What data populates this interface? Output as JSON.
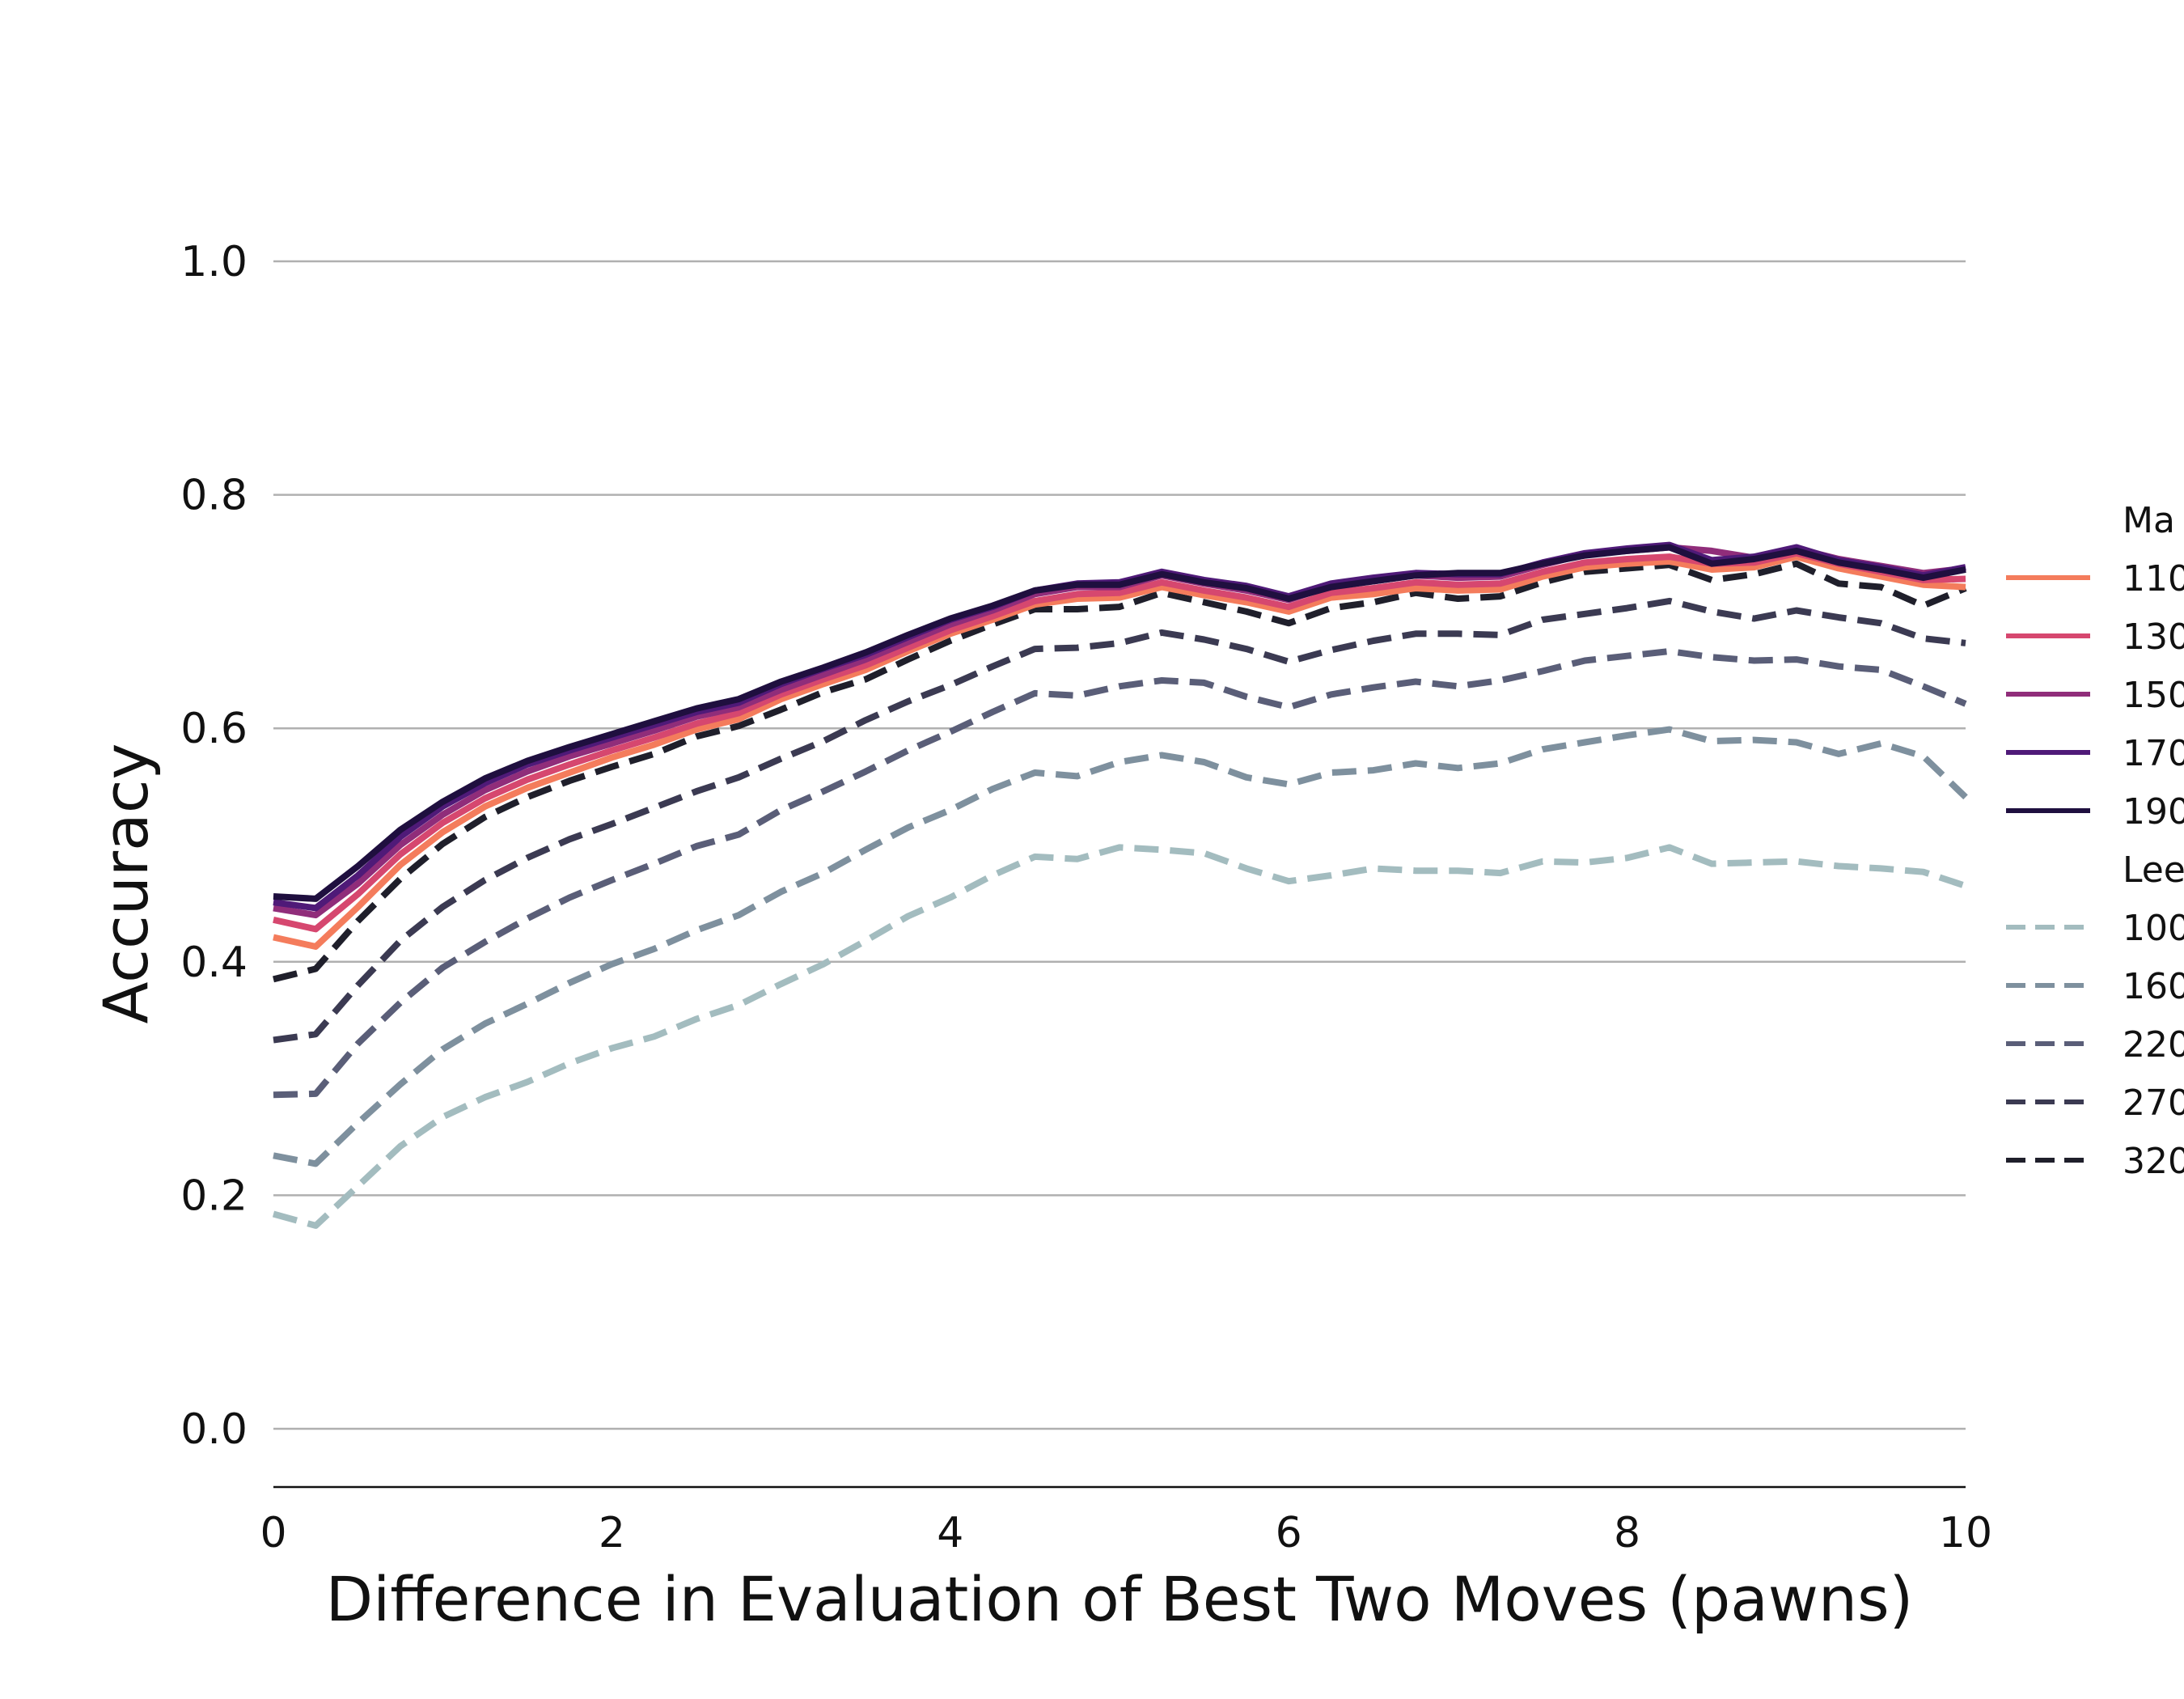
{
  "chart_data": {
    "type": "line",
    "title": "",
    "xlabel": "Difference in Evaluation of Best Two Moves (pawns)",
    "ylabel": "Accuracy",
    "xlim": [
      0,
      10
    ],
    "ylim": [
      -0.05,
      1.1
    ],
    "xticks": [
      "0",
      "2",
      "4",
      "6",
      "8",
      "10"
    ],
    "yticks": [
      "0.0",
      "0.2",
      "0.4",
      "0.6",
      "0.8",
      "1.0"
    ],
    "grid": "horizontal",
    "legend_position": "right (clipped)",
    "legend_groups": [
      {
        "title": "Ma",
        "entries": [
          "110",
          "130",
          "150",
          "170",
          "190"
        ]
      },
      {
        "title": "Lee",
        "entries": [
          "100",
          "160",
          "220",
          "270",
          "320"
        ]
      }
    ],
    "x": [
      0,
      0.25,
      0.5,
      0.75,
      1.0,
      1.25,
      1.5,
      1.75,
      2.0,
      2.25,
      2.5,
      2.75,
      3.0,
      3.25,
      3.5,
      3.75,
      4.0,
      4.25,
      4.5,
      4.75,
      5.0,
      5.25,
      5.5,
      5.75,
      6.0,
      6.25,
      6.5,
      6.75,
      7.0,
      7.25,
      7.5,
      7.75,
      8.0,
      8.25,
      8.5,
      8.75,
      9.0,
      9.25,
      9.5,
      9.75,
      10.0
    ],
    "series": [
      {
        "group": "Ma",
        "color": "#f47c5c",
        "dash": "solid",
        "values": [
          0.421,
          0.413,
          0.447,
          0.483,
          0.511,
          0.533,
          0.549,
          0.562,
          0.575,
          0.586,
          0.599,
          0.608,
          0.625,
          0.638,
          0.65,
          0.666,
          0.681,
          0.693,
          0.706,
          0.711,
          0.712,
          0.721,
          0.714,
          0.708,
          0.7,
          0.712,
          0.715,
          0.72,
          0.718,
          0.719,
          0.73,
          0.738,
          0.741,
          0.743,
          0.736,
          0.738,
          0.747,
          0.737,
          0.73,
          0.723,
          0.721
        ]
      },
      {
        "group": "Ma",
        "color": "#d6476f",
        "dash": "solid",
        "values": [
          0.436,
          0.428,
          0.458,
          0.492,
          0.519,
          0.54,
          0.556,
          0.569,
          0.581,
          0.592,
          0.604,
          0.613,
          0.629,
          0.642,
          0.654,
          0.669,
          0.684,
          0.696,
          0.709,
          0.715,
          0.716,
          0.725,
          0.718,
          0.712,
          0.704,
          0.716,
          0.72,
          0.725,
          0.723,
          0.724,
          0.734,
          0.742,
          0.745,
          0.747,
          0.741,
          0.742,
          0.75,
          0.741,
          0.734,
          0.727,
          0.728
        ]
      },
      {
        "group": "Ma",
        "color": "#902d7a",
        "dash": "solid",
        "values": [
          0.446,
          0.44,
          0.467,
          0.5,
          0.526,
          0.547,
          0.563,
          0.576,
          0.587,
          0.598,
          0.61,
          0.618,
          0.633,
          0.646,
          0.659,
          0.674,
          0.689,
          0.701,
          0.715,
          0.721,
          0.721,
          0.731,
          0.724,
          0.718,
          0.71,
          0.722,
          0.726,
          0.731,
          0.729,
          0.73,
          0.74,
          0.749,
          0.752,
          0.755,
          0.752,
          0.746,
          0.754,
          0.745,
          0.739,
          0.733,
          0.737
        ]
      },
      {
        "group": "Ma",
        "color": "#4f1a78",
        "dash": "solid",
        "values": [
          0.451,
          0.446,
          0.474,
          0.507,
          0.533,
          0.553,
          0.569,
          0.581,
          0.592,
          0.603,
          0.614,
          0.622,
          0.638,
          0.651,
          0.663,
          0.678,
          0.693,
          0.704,
          0.718,
          0.724,
          0.725,
          0.734,
          0.727,
          0.722,
          0.713,
          0.724,
          0.729,
          0.733,
          0.732,
          0.732,
          0.742,
          0.75,
          0.754,
          0.757,
          0.744,
          0.747,
          0.755,
          0.744,
          0.738,
          0.731,
          0.738
        ]
      },
      {
        "group": "Ma",
        "color": "#1f0f3f",
        "dash": "solid",
        "values": [
          0.456,
          0.454,
          0.482,
          0.513,
          0.537,
          0.557,
          0.572,
          0.584,
          0.595,
          0.606,
          0.617,
          0.625,
          0.64,
          0.652,
          0.665,
          0.68,
          0.694,
          0.705,
          0.718,
          0.723,
          0.723,
          0.732,
          0.725,
          0.72,
          0.711,
          0.721,
          0.726,
          0.731,
          0.733,
          0.733,
          0.741,
          0.748,
          0.752,
          0.755,
          0.741,
          0.745,
          0.752,
          0.742,
          0.736,
          0.729,
          0.736
        ]
      },
      {
        "group": "Lee",
        "color": "#a3bcbf",
        "dash": "dashed",
        "values": [
          0.184,
          0.174,
          0.208,
          0.242,
          0.267,
          0.284,
          0.297,
          0.313,
          0.326,
          0.336,
          0.351,
          0.363,
          0.381,
          0.398,
          0.418,
          0.439,
          0.455,
          0.474,
          0.49,
          0.488,
          0.498,
          0.496,
          0.493,
          0.48,
          0.469,
          0.474,
          0.48,
          0.478,
          0.478,
          0.476,
          0.486,
          0.485,
          0.489,
          0.498,
          0.484,
          0.485,
          0.486,
          0.482,
          0.48,
          0.477,
          0.465
        ]
      },
      {
        "group": "Lee",
        "color": "#7e909e",
        "dash": "dashed",
        "values": [
          0.234,
          0.227,
          0.262,
          0.295,
          0.325,
          0.347,
          0.364,
          0.382,
          0.398,
          0.411,
          0.427,
          0.44,
          0.46,
          0.476,
          0.496,
          0.515,
          0.53,
          0.548,
          0.562,
          0.559,
          0.571,
          0.577,
          0.571,
          0.558,
          0.552,
          0.562,
          0.564,
          0.57,
          0.566,
          0.57,
          0.582,
          0.588,
          0.594,
          0.599,
          0.589,
          0.59,
          0.588,
          0.578,
          0.587,
          0.576,
          0.541
        ]
      },
      {
        "group": "Lee",
        "color": "#5a5e78",
        "dash": "dashed",
        "values": [
          0.286,
          0.287,
          0.33,
          0.365,
          0.395,
          0.417,
          0.437,
          0.455,
          0.47,
          0.484,
          0.499,
          0.509,
          0.53,
          0.546,
          0.563,
          0.581,
          0.597,
          0.614,
          0.63,
          0.628,
          0.636,
          0.641,
          0.639,
          0.627,
          0.618,
          0.629,
          0.635,
          0.64,
          0.636,
          0.641,
          0.649,
          0.658,
          0.662,
          0.666,
          0.661,
          0.658,
          0.659,
          0.653,
          0.65,
          0.636,
          0.621
        ]
      },
      {
        "group": "Lee",
        "color": "#3b3a52",
        "dash": "dashed",
        "values": [
          0.333,
          0.338,
          0.38,
          0.418,
          0.447,
          0.47,
          0.489,
          0.505,
          0.518,
          0.532,
          0.546,
          0.558,
          0.574,
          0.589,
          0.607,
          0.623,
          0.637,
          0.653,
          0.668,
          0.669,
          0.673,
          0.682,
          0.676,
          0.668,
          0.657,
          0.667,
          0.675,
          0.681,
          0.681,
          0.68,
          0.693,
          0.698,
          0.703,
          0.709,
          0.7,
          0.694,
          0.701,
          0.695,
          0.69,
          0.677,
          0.673
        ]
      },
      {
        "group": "Lee",
        "color": "#1f1f2b",
        "dash": "dashed",
        "values": [
          0.385,
          0.394,
          0.435,
          0.471,
          0.501,
          0.524,
          0.541,
          0.555,
          0.567,
          0.578,
          0.593,
          0.602,
          0.616,
          0.631,
          0.642,
          0.659,
          0.675,
          0.689,
          0.702,
          0.702,
          0.704,
          0.716,
          0.708,
          0.7,
          0.69,
          0.703,
          0.708,
          0.716,
          0.711,
          0.713,
          0.725,
          0.734,
          0.737,
          0.74,
          0.727,
          0.732,
          0.741,
          0.724,
          0.721,
          0.705,
          0.72
        ]
      }
    ]
  }
}
